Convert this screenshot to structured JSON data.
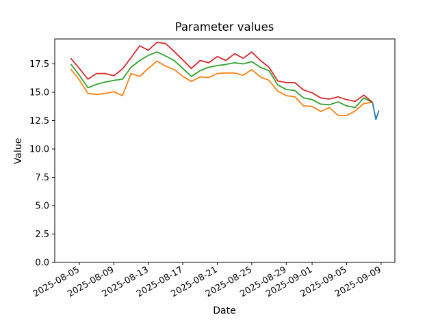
{
  "chart_data": {
    "type": "line",
    "title": "Parameter values",
    "xlabel": "Date",
    "ylabel": "Value",
    "grid": false,
    "legend": "none",
    "ylim": [
      0,
      19.7
    ],
    "xlim_day_offsets": [
      -1.85,
      37.6
    ],
    "y_tick_labels": [
      "0.0",
      "2.5",
      "5.0",
      "7.5",
      "10.0",
      "12.5",
      "15.0",
      "17.5"
    ],
    "y_tick_values": [
      0,
      2.5,
      5,
      7.5,
      10,
      12.5,
      15,
      17.5
    ],
    "x_tick_labels": [
      "2025-08-05",
      "2025-08-09",
      "2025-08-13",
      "2025-08-17",
      "2025-08-21",
      "2025-08-25",
      "2025-08-29",
      "2025-09-01",
      "2025-09-05",
      "2025-09-09"
    ],
    "x_tick_day_offsets": [
      1,
      5,
      9,
      13,
      17,
      21,
      25,
      28,
      32,
      36
    ],
    "x_start_date": "2025-08-04",
    "dates": [
      "2025-08-04",
      "2025-08-05",
      "2025-08-06",
      "2025-08-07",
      "2025-08-08",
      "2025-08-09",
      "2025-08-10",
      "2025-08-11",
      "2025-08-12",
      "2025-08-13",
      "2025-08-14",
      "2025-08-15",
      "2025-08-16",
      "2025-08-17",
      "2025-08-18",
      "2025-08-19",
      "2025-08-20",
      "2025-08-21",
      "2025-08-22",
      "2025-08-23",
      "2025-08-24",
      "2025-08-25",
      "2025-08-26",
      "2025-08-27",
      "2025-08-28",
      "2025-08-29",
      "2025-08-30",
      "2025-08-31",
      "2025-09-01",
      "2025-09-02",
      "2025-09-03",
      "2025-09-04",
      "2025-09-05",
      "2025-09-06",
      "2025-09-07",
      "2025-09-08"
    ],
    "series": [
      {
        "name": "blue-line",
        "color": "#1f77b4",
        "x_day_offsets": [
          35,
          35.4,
          35.75
        ],
        "values": [
          14.12,
          12.6,
          13.4
        ]
      },
      {
        "name": "orange-line",
        "color": "#ff7f0e",
        "x_day_offsets": [
          0,
          1,
          2,
          3,
          4,
          5,
          6,
          7,
          8,
          9,
          10,
          11,
          12,
          13,
          14,
          15,
          16,
          17,
          18,
          19,
          20,
          21,
          22,
          23,
          24,
          25,
          26,
          27,
          28,
          29,
          30,
          31,
          32,
          33,
          34,
          35
        ],
        "values": [
          17.05,
          16.1,
          14.9,
          14.8,
          14.9,
          15.05,
          14.7,
          16.65,
          16.4,
          17.1,
          17.75,
          17.3,
          17.0,
          16.4,
          15.95,
          16.35,
          16.3,
          16.65,
          16.7,
          16.7,
          16.5,
          17.0,
          16.35,
          16.05,
          15.1,
          14.7,
          14.6,
          13.8,
          13.75,
          13.3,
          13.65,
          12.95,
          12.95,
          13.35,
          14.0,
          14.12
        ]
      },
      {
        "name": "green-line",
        "color": "#2ca02c",
        "x_day_offsets": [
          0,
          1,
          2,
          3,
          4,
          5,
          6,
          7,
          8,
          9,
          10,
          11,
          12,
          13,
          14,
          15,
          16,
          17,
          18,
          19,
          20,
          21,
          22,
          23,
          24,
          25,
          26,
          27,
          28,
          29,
          30,
          31,
          32,
          33,
          34,
          35
        ],
        "values": [
          17.5,
          16.5,
          15.4,
          15.7,
          15.9,
          16.05,
          16.15,
          17.2,
          17.8,
          18.25,
          18.55,
          18.2,
          17.8,
          17.1,
          16.4,
          16.9,
          17.2,
          17.35,
          17.45,
          17.6,
          17.5,
          17.7,
          17.2,
          16.9,
          15.65,
          15.25,
          15.15,
          14.5,
          14.35,
          13.95,
          13.9,
          14.15,
          13.8,
          13.65,
          14.5,
          14.1
        ]
      },
      {
        "name": "red-line",
        "color": "#d62728",
        "x_day_offsets": [
          0,
          1,
          2,
          3,
          4,
          5,
          6,
          7,
          8,
          9,
          10,
          11,
          12,
          13,
          14,
          15,
          16,
          17,
          18,
          19,
          20,
          21,
          22,
          23,
          24,
          25,
          26,
          27,
          28,
          29,
          30,
          31,
          32,
          33,
          34,
          35
        ],
        "values": [
          18.0,
          17.1,
          16.15,
          16.65,
          16.65,
          16.45,
          17.05,
          18.05,
          19.1,
          18.7,
          19.4,
          19.3,
          18.6,
          17.85,
          17.1,
          17.8,
          17.6,
          18.15,
          17.8,
          18.4,
          18.0,
          18.55,
          17.8,
          17.2,
          16.0,
          15.85,
          15.85,
          15.2,
          14.95,
          14.5,
          14.4,
          14.6,
          14.35,
          14.2,
          14.75,
          14.12
        ]
      }
    ]
  },
  "frame": {
    "background": "#ffffff",
    "spine_color": "#000000"
  }
}
